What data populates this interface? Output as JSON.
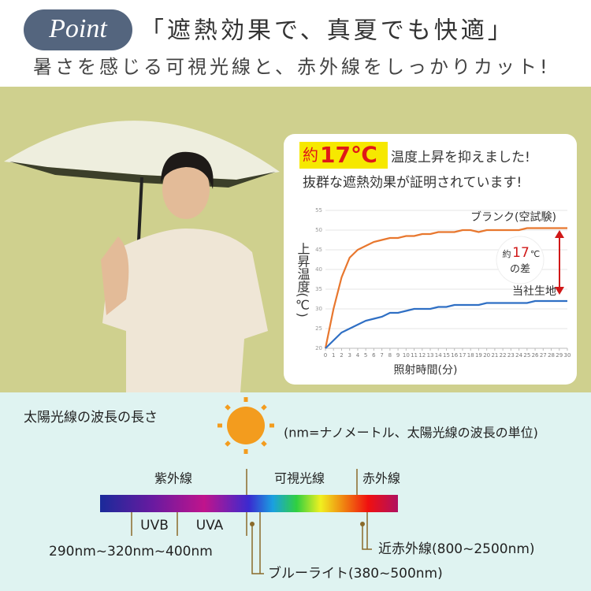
{
  "header": {
    "badge": "Point",
    "title": "「遮熱効果で、真夏でも快適」",
    "subtitle": "暑さを感じる可視光線と、赤外線をしっかりカット!"
  },
  "chart_card": {
    "highlight_prefix": "約",
    "highlight_value": "17℃",
    "headline": "温度上昇を抑えました!",
    "subline": "抜群な遮熱効果が証明されています!"
  },
  "chart_data": {
    "type": "line",
    "ylabel": "上昇温度(℃)",
    "xlabel": "照射時間(分)",
    "x": [
      0,
      1,
      2,
      3,
      4,
      5,
      6,
      7,
      8,
      9,
      10,
      11,
      12,
      13,
      14,
      15,
      16,
      17,
      18,
      19,
      20,
      21,
      22,
      23,
      24,
      25,
      26,
      27,
      28,
      29,
      30
    ],
    "xlim": [
      0,
      30
    ],
    "xticks": [
      0,
      1,
      2,
      3,
      4,
      5,
      6,
      7,
      8,
      9,
      10,
      11,
      12,
      13,
      14,
      15,
      16,
      17,
      18,
      19,
      20,
      21,
      22,
      23,
      24,
      25,
      26,
      27,
      28,
      29,
      30
    ],
    "ylim": [
      20,
      55
    ],
    "yticks": [
      20,
      25,
      30,
      35,
      40,
      45,
      50,
      55
    ],
    "series": [
      {
        "name": "ブランク(空試験)",
        "color": "#e8772e",
        "values": [
          20,
          30,
          38,
          43,
          45,
          46,
          47,
          47.5,
          48,
          48,
          48.5,
          48.5,
          49,
          49,
          49.5,
          49.5,
          49.5,
          50,
          50,
          49.5,
          50,
          50,
          50,
          50,
          50,
          50.5,
          50.5,
          50.5,
          50.5,
          50.5,
          50.5
        ]
      },
      {
        "name": "当社生地",
        "color": "#2f6fc4",
        "values": [
          20,
          22,
          24,
          25,
          26,
          27,
          27.5,
          28,
          29,
          29,
          29.5,
          30,
          30,
          30,
          30.5,
          30.5,
          31,
          31,
          31,
          31,
          31.5,
          31.5,
          31.5,
          31.5,
          31.5,
          31.5,
          32,
          32,
          32,
          32,
          32
        ]
      }
    ],
    "annotation": {
      "prefix": "約",
      "value": "17",
      "unit": "℃",
      "suffix": "の差"
    }
  },
  "spectrum": {
    "title": "太陽光線の波長の長さ",
    "note": "(nm=ナノメートル、太陽光線の波長の単位)",
    "bands": [
      "紫外線",
      "可視光線",
      "赤外線"
    ],
    "uvb": "UVB",
    "uva": "UVA",
    "range": "290nm~320nm~400nm",
    "near_ir": "近赤外線(800~2500nm)",
    "blue_light": "ブルーライト(380~500nm)"
  }
}
